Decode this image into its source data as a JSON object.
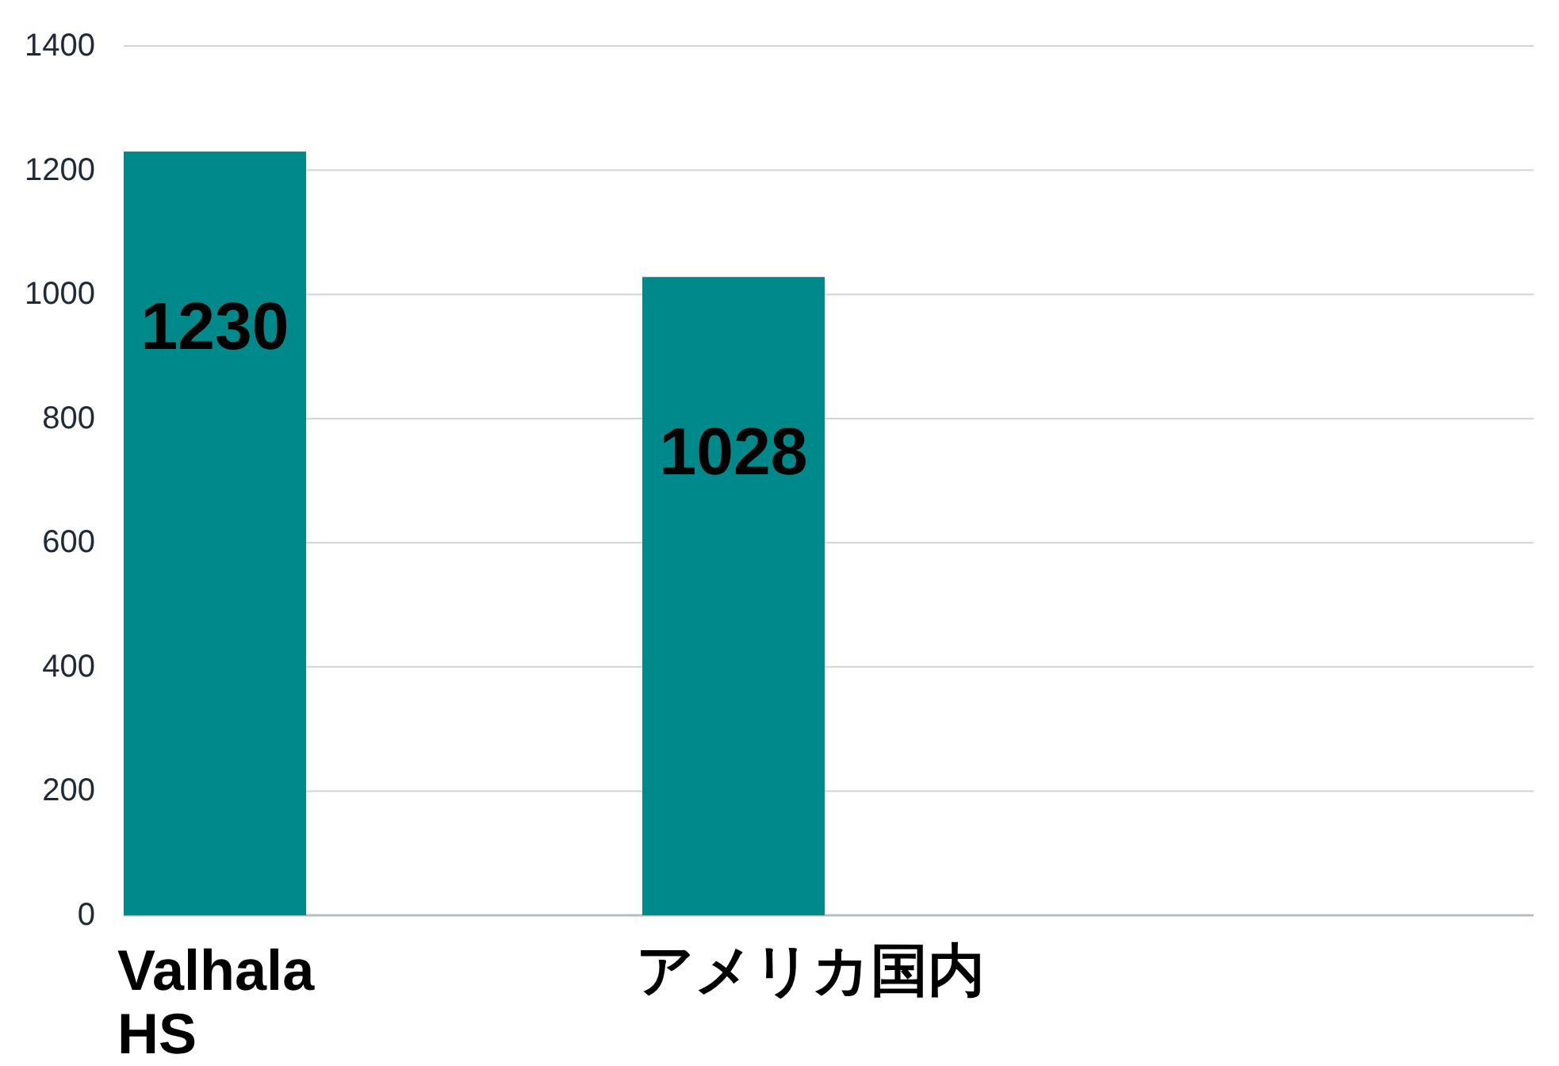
{
  "chart_data": {
    "type": "bar",
    "categories": [
      "Valhala HS",
      "アメリカ国内"
    ],
    "values": [
      1230,
      1028
    ],
    "color": "#00898b",
    "data_labels": true,
    "ylim": [
      0,
      1400
    ],
    "yticks": [
      0,
      200,
      400,
      600,
      800,
      1000,
      1200,
      1400
    ],
    "grid": "y"
  }
}
